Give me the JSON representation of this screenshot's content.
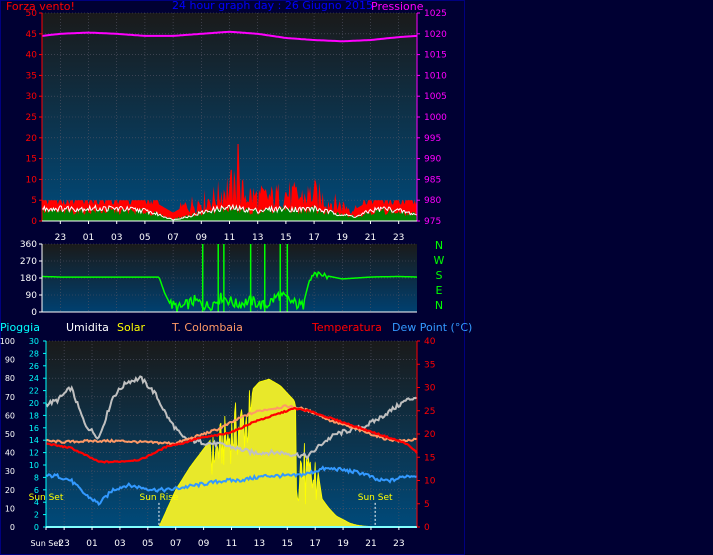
{
  "colors": {
    "background": "#000033",
    "frame": "#000080",
    "wind": "#ff0000",
    "wind_avg": "#008000",
    "wind_gust": "#ffffff",
    "pressure": "#ff00ff",
    "direction": "#00ff00",
    "rain": "#00ffff",
    "humidity": "#c0c0c0",
    "solar": "#ffff00",
    "t_colombaia": "#ff9966",
    "temperature": "#ff0000",
    "dewpoint": "#3399ff",
    "axis_text": "#ffffff"
  },
  "top_panel": {
    "left_label": "Forza vento!",
    "title": "24 hour graph day : 26 Giugno 2015",
    "right_label": "Pressione"
  },
  "bottom_panel": {
    "labels": [
      "Pioggia",
      "Umidita",
      "Solar",
      "T. Colombaia",
      "Temperatura",
      "Dew Point (°C)"
    ]
  },
  "chart_data": [
    {
      "type": "area",
      "name": "wind",
      "ylim": [
        0,
        50
      ],
      "y_ticks": [
        "0",
        "5",
        "10",
        "15",
        "20",
        "25",
        "30",
        "35",
        "40",
        "45",
        "50"
      ],
      "x_ticks": [
        "23",
        "01",
        "03",
        "05",
        "07",
        "09",
        "11",
        "13",
        "15",
        "17",
        "19",
        "21",
        "23"
      ],
      "x_tick_hours": [
        23,
        25,
        27,
        29,
        31,
        33,
        35,
        37,
        39,
        41,
        43,
        45,
        47
      ],
      "x_range_hours": [
        21.7,
        48.3
      ],
      "series": [
        {
          "x": [
            21.7,
            23,
            25,
            27,
            29,
            30,
            31,
            32,
            33,
            34,
            35,
            36,
            37,
            38,
            39,
            40,
            41,
            42,
            43,
            44,
            45,
            46,
            47,
            48.3
          ],
          "values": [
            5,
            5,
            5,
            5,
            5,
            4,
            2,
            4,
            5,
            6,
            9,
            7,
            6,
            6,
            7,
            6,
            7,
            5,
            4,
            3,
            5,
            5,
            4,
            3
          ]
        },
        {
          "x": [
            21.7,
            23,
            25,
            27,
            29,
            30,
            31,
            32,
            33,
            34,
            35,
            36,
            37,
            38,
            39,
            40,
            41,
            42,
            43,
            44,
            45,
            46,
            47,
            48.3
          ],
          "values": [
            2.5,
            2.2,
            2.5,
            2.4,
            2.2,
            1.5,
            0.5,
            1.2,
            2,
            2.5,
            3,
            2.5,
            2.2,
            2.5,
            2.8,
            2.5,
            2.8,
            2,
            1.5,
            1.2,
            2.2,
            2.5,
            2,
            1.5
          ]
        },
        {
          "x": [
            21.7,
            23,
            25,
            27,
            29,
            30,
            31,
            32,
            33,
            34,
            35,
            36,
            37,
            38,
            39,
            40,
            41,
            42,
            43,
            44,
            45,
            46,
            47,
            48.3
          ],
          "values": [
            3,
            3,
            3,
            3,
            2.5,
            1.5,
            0.3,
            1,
            2,
            2.8,
            3.2,
            2.8,
            2.5,
            2.8,
            3,
            2.8,
            3,
            2.2,
            1.5,
            1,
            2.5,
            3,
            2.5,
            1.5
          ]
        }
      ],
      "peak": {
        "x": 35.6,
        "value": 18.5
      }
    },
    {
      "type": "line",
      "name": "pressure",
      "ylim": [
        975,
        1025
      ],
      "y_ticks": [
        "975",
        "980",
        "985",
        "990",
        "995",
        "1000",
        "1005",
        "1010",
        "1015",
        "1020",
        "1025"
      ],
      "x": [
        21.7,
        23,
        25,
        27,
        29,
        31,
        33,
        35,
        37,
        39,
        41,
        43,
        45,
        47,
        48.3
      ],
      "values": [
        1019.5,
        1020,
        1020.3,
        1020,
        1019.5,
        1019.5,
        1020,
        1020.5,
        1020,
        1019,
        1018.5,
        1018.2,
        1018.5,
        1019.2,
        1019.5
      ]
    },
    {
      "type": "line",
      "name": "wind direction",
      "ylim": [
        0,
        360
      ],
      "y_ticks": [
        "0",
        "90",
        "180",
        "270",
        "360"
      ],
      "compass": [
        "N",
        "W",
        "S",
        "E",
        "N"
      ],
      "x": [
        21.7,
        23,
        25,
        27,
        29,
        30,
        30.4,
        30.8,
        31.5,
        32.5,
        33.5,
        34.5,
        35.5,
        36.5,
        37.5,
        38.5,
        39.5,
        40.2,
        40.6,
        41,
        42,
        43,
        45,
        47,
        48.3
      ],
      "values": [
        188,
        185,
        185,
        185,
        185,
        185,
        100,
        40,
        20,
        60,
        30,
        80,
        40,
        60,
        30,
        90,
        50,
        30,
        150,
        200,
        190,
        175,
        185,
        188,
        185
      ]
    },
    {
      "type": "line",
      "name": "bottom",
      "y_ticks_rain": [
        "0",
        "10",
        "20",
        "30",
        "40",
        "50",
        "60",
        "70",
        "80",
        "90",
        "100"
      ],
      "y_ticks_humidity": [
        "0",
        "2",
        "4",
        "6",
        "8",
        "10",
        "12",
        "14",
        "16",
        "18",
        "20",
        "22",
        "24",
        "26",
        "28",
        "30"
      ],
      "y_ticks_temp": [
        "0",
        "5",
        "10",
        "15",
        "20",
        "25",
        "30",
        "35",
        "40"
      ],
      "x_ticks": [
        "Sun Set",
        "23",
        "01",
        "03",
        "05",
        "07",
        "09",
        "11",
        "13",
        "15",
        "17",
        "19",
        "21",
        "23"
      ],
      "x_tick_hours": [
        21.7,
        23,
        25,
        27,
        29,
        31,
        33,
        35,
        37,
        39,
        41,
        43,
        45,
        47
      ],
      "annotations": [
        {
          "text": "Sun Set",
          "x": 21.7
        },
        {
          "text": "Sun Rise",
          "x": 29.8
        },
        {
          "text": "Sun Set",
          "x": 45.3
        }
      ],
      "series": [
        {
          "name": "Umidita",
          "x": [
            21.7,
            22.5,
            23.5,
            24.5,
            25.5,
            26.5,
            27.5,
            28.5,
            29.5,
            30.5,
            31.5,
            32.5,
            33.5,
            34.5,
            35.5,
            36.5,
            37.5,
            38.5,
            39.5,
            40.5,
            41.5,
            42.5,
            43.5,
            44.5,
            45.5,
            46.5,
            47.5,
            48.3
          ],
          "values": [
            66,
            68,
            75,
            55,
            48,
            70,
            78,
            80,
            72,
            58,
            48,
            46,
            45,
            44,
            42,
            40,
            40,
            40,
            39,
            38,
            45,
            50,
            52,
            54,
            58,
            63,
            68,
            70
          ]
        },
        {
          "name": "T. Colombaia",
          "x": [
            21.7,
            23,
            25,
            27,
            29,
            31,
            32,
            33,
            34,
            35,
            36,
            37,
            38,
            39,
            40,
            41,
            42,
            43,
            44,
            45,
            46,
            47,
            48.3
          ],
          "values": [
            18.5,
            18.3,
            18.5,
            18.5,
            18.2,
            18,
            19,
            20,
            21,
            22.5,
            24,
            25,
            25.5,
            26,
            25.5,
            24.5,
            23,
            22,
            21,
            20,
            19,
            18.5,
            18.8
          ]
        },
        {
          "name": "Temperatura",
          "x": [
            21.7,
            22.5,
            23.5,
            24.5,
            25.5,
            26.5,
            27.5,
            28.5,
            29.5,
            30.5,
            31.5,
            32.5,
            33.5,
            34.5,
            35.5,
            36.5,
            37.5,
            38.5,
            39.5,
            40.5,
            41.5,
            42.5,
            43.5,
            44.5,
            45.5,
            46.5,
            47.5,
            48.3
          ],
          "values": [
            18,
            17.5,
            17,
            15.5,
            14,
            14,
            14.2,
            14.5,
            16,
            17.5,
            18,
            19,
            19.5,
            20,
            21,
            22.5,
            23.5,
            24.5,
            25.5,
            25,
            24,
            23,
            22,
            21,
            20,
            19,
            18,
            16
          ]
        },
        {
          "name": "Dew Point (°C)",
          "x": [
            21.7,
            22.5,
            23.5,
            24.5,
            25.5,
            26.5,
            27.5,
            28.5,
            29.5,
            30.5,
            31.5,
            32.5,
            33.5,
            34.5,
            35.5,
            36.5,
            37.5,
            38.5,
            39.5,
            40.5,
            41.5,
            42.5,
            43.5,
            44.5,
            45.5,
            46.5,
            47.5,
            48.3
          ],
          "values": [
            11,
            11,
            10,
            7,
            5,
            8,
            9,
            8.5,
            8,
            8,
            8.5,
            9,
            9.5,
            10,
            10,
            10.5,
            11,
            11,
            11,
            11.5,
            12.5,
            12.5,
            12,
            11.5,
            10,
            10,
            11,
            11
          ]
        },
        {
          "name": "Solar",
          "x": [
            29.8,
            31,
            32,
            33,
            34,
            35,
            36,
            37,
            37.7,
            38.5,
            39.5,
            40,
            40.5,
            41,
            41.5,
            42,
            42.5,
            43,
            43.5,
            44,
            44.5,
            45,
            45.3
          ],
          "values": [
            0,
            20,
            32,
            42,
            52,
            62,
            70,
            78,
            79.5,
            76,
            68,
            50,
            35,
            40,
            15,
            10,
            6,
            4,
            2,
            1,
            0.5,
            0.2,
            0
          ]
        },
        {
          "name": "Pioggia",
          "x": [
            21.7,
            48.3
          ],
          "values": [
            0,
            0
          ]
        }
      ]
    }
  ]
}
